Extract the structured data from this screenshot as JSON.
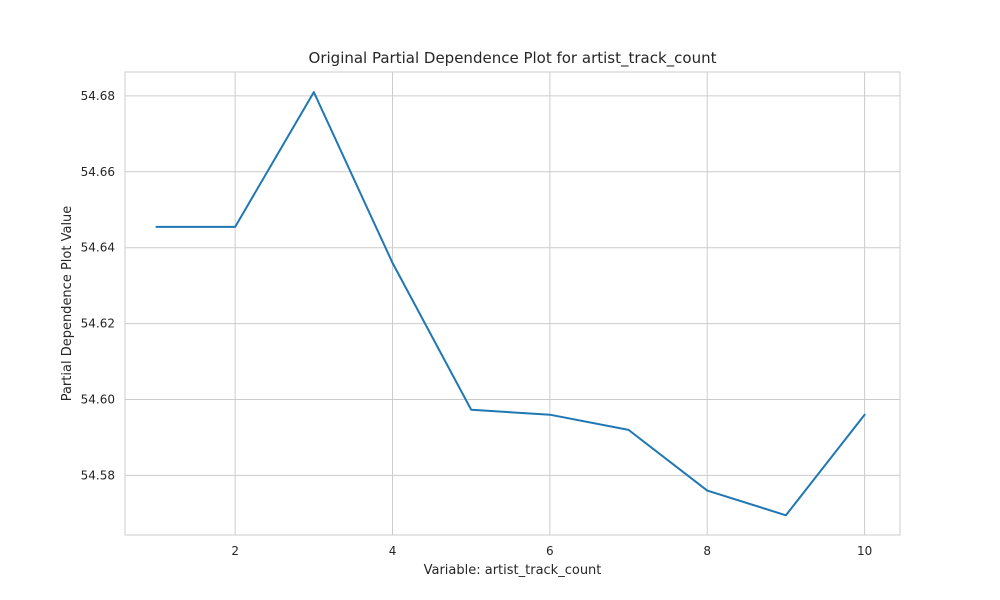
{
  "chart_data": {
    "type": "line",
    "title": "Original Partial Dependence Plot for artist_track_count",
    "xlabel": "Variable: artist_track_count",
    "ylabel": "Partial Dependence Plot Value",
    "x": [
      1,
      2,
      3,
      4,
      5,
      6,
      7,
      8,
      9,
      10
    ],
    "series": [
      {
        "values": [
          54.6455,
          54.6455,
          54.681,
          54.636,
          54.5973,
          54.596,
          54.592,
          54.576,
          54.5695,
          54.596
        ],
        "color": "#1f77b4"
      }
    ],
    "xlim": [
      0.6,
      10.45
    ],
    "ylim": [
      54.5643,
      54.6863
    ],
    "xticks": [
      2,
      4,
      6,
      8,
      10
    ],
    "yticks": [
      54.58,
      54.6,
      54.62,
      54.64,
      54.66,
      54.68
    ],
    "xtick_labels": [
      "2",
      "4",
      "6",
      "8",
      "10"
    ],
    "ytick_labels": [
      "54.58",
      "54.60",
      "54.62",
      "54.64",
      "54.66",
      "54.68"
    ],
    "grid": true,
    "colors": {
      "grid": "#cccccc",
      "frame": "#cccccc",
      "text": "#262626"
    }
  }
}
